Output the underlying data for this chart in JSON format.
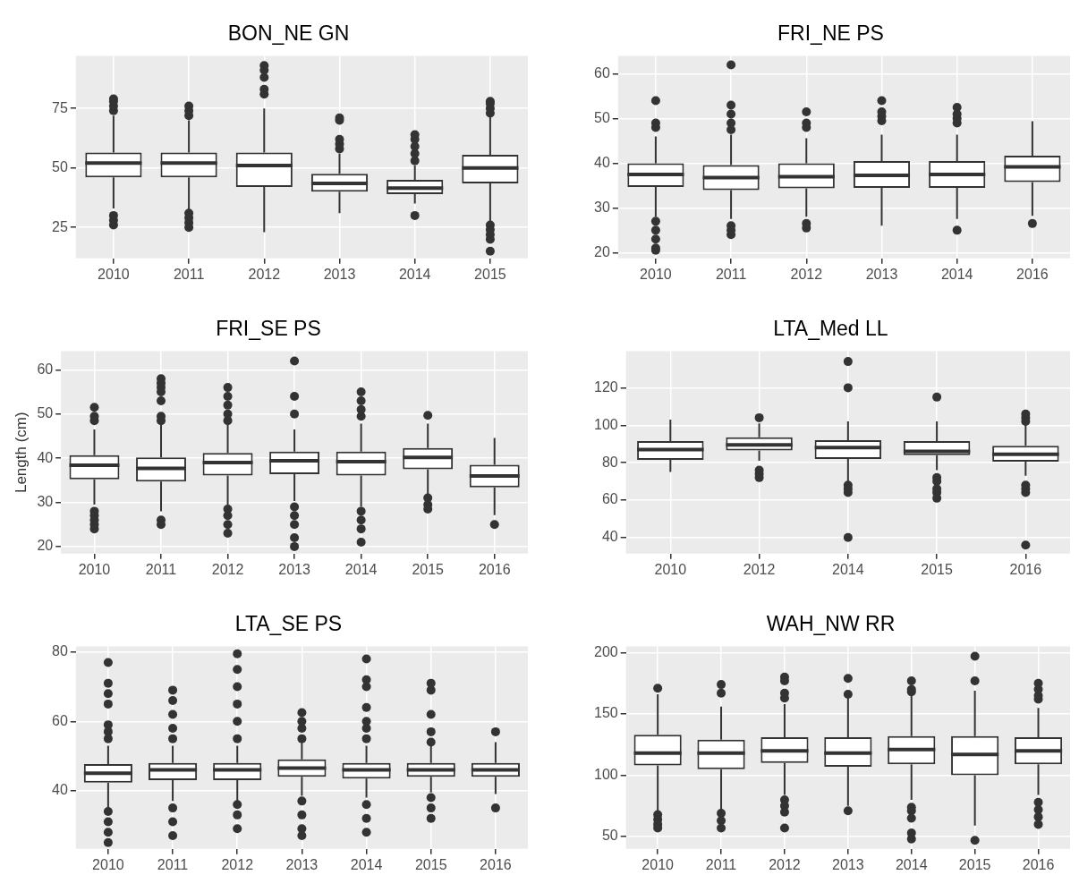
{
  "chart_data": [
    {
      "type": "box",
      "title": "BON_NE GN",
      "categories": [
        "2010",
        "2011",
        "2012",
        "2013",
        "2014",
        "2015"
      ],
      "ylim": [
        12,
        97
      ],
      "yticks": [
        25,
        50,
        75
      ],
      "grid": true,
      "boxes": [
        {
          "low": 33,
          "q1": 46,
          "median": 52,
          "q3": 56.5,
          "high": 72,
          "outliers": [
            74,
            76,
            78,
            79,
            26,
            28,
            30
          ]
        },
        {
          "low": 32.5,
          "q1": 46,
          "median": 52,
          "q3": 56.5,
          "high": 70,
          "outliers": [
            72,
            74,
            76,
            25,
            27,
            29,
            31
          ]
        },
        {
          "low": 23,
          "q1": 42,
          "median": 51,
          "q3": 56.5,
          "high": 75,
          "outliers": [
            81,
            83,
            88,
            91,
            93
          ]
        },
        {
          "low": 31,
          "q1": 40,
          "median": 43.5,
          "q3": 47.5,
          "high": 56,
          "outliers": [
            58,
            60,
            62,
            70,
            71
          ]
        },
        {
          "low": 35,
          "q1": 39,
          "median": 41.5,
          "q3": 45,
          "high": 51,
          "outliers": [
            30,
            53,
            56,
            59,
            62,
            64
          ]
        },
        {
          "low": 27.5,
          "q1": 43.5,
          "median": 50,
          "q3": 55.5,
          "high": 71.5,
          "outliers": [
            73,
            75,
            77,
            78,
            26,
            24,
            22,
            20,
            15
          ]
        }
      ]
    },
    {
      "type": "box",
      "title": "FRI_NE PS",
      "categories": [
        "2010",
        "2011",
        "2012",
        "2013",
        "2014",
        "2016"
      ],
      "ylim": [
        18.7,
        64
      ],
      "yticks": [
        20,
        30,
        40,
        50,
        60
      ],
      "grid": true,
      "boxes": [
        {
          "low": 28,
          "q1": 34.7,
          "median": 37.5,
          "q3": 40,
          "high": 46,
          "outliers": [
            48,
            49,
            54,
            27,
            25,
            23,
            21,
            20.5
          ]
        },
        {
          "low": 27.5,
          "q1": 34,
          "median": 36.8,
          "q3": 39.6,
          "high": 46.4,
          "outliers": [
            47.5,
            49,
            51,
            53,
            62,
            26,
            25,
            24
          ]
        },
        {
          "low": 28,
          "q1": 34.4,
          "median": 37,
          "q3": 40,
          "high": 45.6,
          "outliers": [
            48,
            49,
            51.5,
            25.5,
            26.5
          ]
        },
        {
          "low": 26,
          "q1": 34.5,
          "median": 37.3,
          "q3": 40.5,
          "high": 46.4,
          "outliers": [
            49.5,
            50.5,
            51.5,
            54
          ]
        },
        {
          "low": 27.5,
          "q1": 34.5,
          "median": 37.5,
          "q3": 40.5,
          "high": 46.4,
          "outliers": [
            49,
            50,
            51,
            52.5,
            25
          ]
        },
        {
          "low": 28.2,
          "q1": 35.8,
          "median": 39.2,
          "q3": 41.7,
          "high": 49.4,
          "outliers": [
            26.5
          ]
        }
      ]
    },
    {
      "type": "box",
      "title": "FRI_SE PS",
      "ylabel": "Length (cm)",
      "categories": [
        "2010",
        "2011",
        "2012",
        "2013",
        "2014",
        "2015",
        "2016"
      ],
      "ylim": [
        18.4,
        64.2
      ],
      "yticks": [
        20,
        30,
        40,
        50,
        60
      ],
      "grid": true,
      "boxes": [
        {
          "low": 29.5,
          "q1": 35.2,
          "median": 38.4,
          "q3": 40.7,
          "high": 46.5,
          "outliers": [
            48.5,
            49.5,
            51.5,
            24,
            25,
            26,
            27,
            28
          ]
        },
        {
          "low": 28,
          "q1": 34.7,
          "median": 37.7,
          "q3": 40.2,
          "high": 47.8,
          "outliers": [
            48.5,
            49.5,
            53,
            55,
            56,
            57,
            58,
            25,
            26
          ]
        },
        {
          "low": 29.5,
          "q1": 36.1,
          "median": 39,
          "q3": 41.2,
          "high": 47.8,
          "outliers": [
            48.5,
            50,
            52,
            54,
            56,
            23,
            25,
            27,
            28.5
          ]
        },
        {
          "low": 30.3,
          "q1": 36.4,
          "median": 39.4,
          "q3": 41.5,
          "high": 46.5,
          "outliers": [
            50,
            54,
            62,
            29,
            27,
            25,
            22,
            20
          ]
        },
        {
          "low": 29,
          "q1": 36.1,
          "median": 39.2,
          "q3": 41.5,
          "high": 47.8,
          "outliers": [
            49.5,
            51,
            53,
            55,
            28,
            26,
            24,
            21
          ]
        },
        {
          "low": 31.6,
          "q1": 37.5,
          "median": 40.2,
          "q3": 42.3,
          "high": 47.8,
          "outliers": [
            49.7,
            31,
            29.5,
            28.5
          ]
        },
        {
          "low": 27.1,
          "q1": 33.4,
          "median": 36,
          "q3": 38.5,
          "high": 44.6,
          "outliers": [
            25
          ]
        }
      ]
    },
    {
      "type": "box",
      "title": "LTA_Med LL",
      "categories": [
        "2010",
        "2012",
        "2014",
        "2015",
        "2016"
      ],
      "ylim": [
        31.4,
        139.5
      ],
      "yticks": [
        40,
        60,
        80,
        100,
        120
      ],
      "grid": true,
      "boxes": [
        {
          "low": 75,
          "q1": 81.5,
          "median": 87,
          "q3": 91.5,
          "high": 103
        },
        {
          "low": 81,
          "q1": 86.5,
          "median": 89.5,
          "q3": 93.5,
          "high": 101,
          "outliers": [
            72,
            74,
            76,
            104
          ]
        },
        {
          "low": 70,
          "q1": 82,
          "median": 88,
          "q3": 92,
          "high": 102,
          "outliers": [
            64,
            66,
            68,
            40,
            120,
            134
          ]
        },
        {
          "low": 76,
          "q1": 84,
          "median": 86,
          "q3": 91.5,
          "high": 102,
          "outliers": [
            61,
            64,
            66,
            70,
            72,
            115
          ]
        },
        {
          "low": 73,
          "q1": 80.5,
          "median": 84.5,
          "q3": 89,
          "high": 101,
          "outliers": [
            64,
            66,
            68,
            102,
            104,
            106,
            36
          ]
        }
      ]
    },
    {
      "type": "box",
      "title": "LTA_SE PS",
      "categories": [
        "2010",
        "2011",
        "2012",
        "2013",
        "2014",
        "2015",
        "2016"
      ],
      "ylim": [
        23.2,
        81.6
      ],
      "yticks": [
        40,
        60,
        80
      ],
      "grid": true,
      "boxes": [
        {
          "low": 35,
          "q1": 42.3,
          "median": 45,
          "q3": 47.7,
          "high": 53,
          "outliers": [
            55,
            57,
            59,
            65,
            68,
            71,
            77,
            34,
            31,
            28,
            25
          ]
        },
        {
          "low": 37,
          "q1": 43,
          "median": 46,
          "q3": 48,
          "high": 53,
          "outliers": [
            55,
            58,
            62,
            66,
            69,
            35,
            31,
            27
          ]
        },
        {
          "low": 37,
          "q1": 43,
          "median": 46,
          "q3": 48,
          "high": 53,
          "outliers": [
            55,
            60,
            65,
            70,
            75,
            79.5,
            36,
            33,
            29
          ]
        },
        {
          "low": 38.5,
          "q1": 44,
          "median": 46.5,
          "q3": 49,
          "high": 54,
          "outliers": [
            55,
            58,
            60,
            62.5,
            37,
            33,
            29,
            27
          ]
        },
        {
          "low": 38,
          "q1": 43.5,
          "median": 46,
          "q3": 48,
          "high": 53,
          "outliers": [
            55,
            58,
            60,
            64,
            70,
            72,
            78,
            36,
            32,
            28
          ]
        },
        {
          "low": 39.5,
          "q1": 44,
          "median": 46,
          "q3": 48,
          "high": 53,
          "outliers": [
            54,
            57,
            62,
            69,
            71,
            38,
            35,
            32
          ]
        },
        {
          "low": 39,
          "q1": 44,
          "median": 46,
          "q3": 48,
          "high": 54,
          "outliers": [
            57,
            35
          ]
        }
      ]
    },
    {
      "type": "box",
      "title": "WAH_NW RR",
      "categories": [
        "2010",
        "2011",
        "2012",
        "2013",
        "2014",
        "2015",
        "2016"
      ],
      "ylim": [
        40,
        205
      ],
      "yticks": [
        50,
        100,
        150,
        200
      ],
      "grid": true,
      "boxes": [
        {
          "low": 71,
          "q1": 108,
          "median": 118,
          "q3": 133,
          "high": 166,
          "outliers": [
            171,
            68,
            64,
            60,
            57
          ]
        },
        {
          "low": 71,
          "q1": 105,
          "median": 118,
          "q3": 129,
          "high": 156,
          "outliers": [
            167,
            174,
            69,
            63,
            57
          ]
        },
        {
          "low": 84,
          "q1": 110,
          "median": 120,
          "q3": 131,
          "high": 158,
          "outliers": [
            163,
            167,
            177,
            180,
            80,
            75,
            70,
            57
          ]
        },
        {
          "low": 75,
          "q1": 107,
          "median": 118,
          "q3": 131,
          "high": 165,
          "outliers": [
            166,
            179,
            71
          ]
        },
        {
          "low": 80,
          "q1": 109,
          "median": 121,
          "q3": 132,
          "high": 166,
          "outliers": [
            168,
            170,
            177,
            74,
            71,
            65,
            53,
            48
          ]
        },
        {
          "low": 59,
          "q1": 100,
          "median": 117,
          "q3": 132,
          "high": 169,
          "outliers": [
            177,
            197,
            47
          ]
        },
        {
          "low": 84,
          "q1": 109,
          "median": 120,
          "q3": 131,
          "high": 155,
          "outliers": [
            162,
            165,
            170,
            175,
            78,
            72,
            66,
            60
          ]
        }
      ]
    }
  ]
}
